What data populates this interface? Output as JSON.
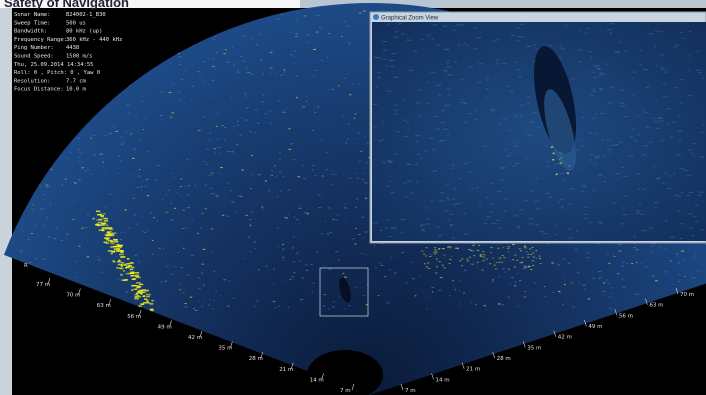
{
  "header": {
    "title": "Safety of Navigation"
  },
  "info": {
    "rows": [
      {
        "label": "Sonar Name:",
        "value": "B24002-1_B30"
      },
      {
        "label": "Sweep Time:",
        "value": "500 us"
      },
      {
        "label": "Bandwidth:",
        "value": "80 kHz (up)"
      },
      {
        "label": "Frequency Range:",
        "value": "360 kHz - 440 kHz"
      },
      {
        "label": "Ping Number:",
        "value": "4438"
      },
      {
        "label": "Sound Speed:",
        "value": "1500 m/s"
      }
    ],
    "timestamp": "Thu, 25.09.2014 14:34:55",
    "attitude": "Roll: 0 , Pitch: 0 , Yaw 0",
    "rows2": [
      {
        "label": "Resolution:",
        "value": "7.7 cm"
      },
      {
        "label": "Focus Distance:",
        "value": "10.0 m"
      }
    ]
  },
  "zoom_window": {
    "title": "Graphical Zoom View"
  },
  "fan": {
    "edge_label": "R",
    "left_ranges": [
      "77 m",
      "70 m",
      "63 m",
      "56 m",
      "49 m",
      "42 m",
      "35 m",
      "28 m",
      "21 m",
      "14 m",
      "7 m"
    ],
    "right_ranges": [
      "7 m",
      "14 m",
      "21 m",
      "28 m",
      "35 m",
      "42 m",
      "49 m",
      "56 m",
      "63 m",
      "70 m"
    ]
  }
}
